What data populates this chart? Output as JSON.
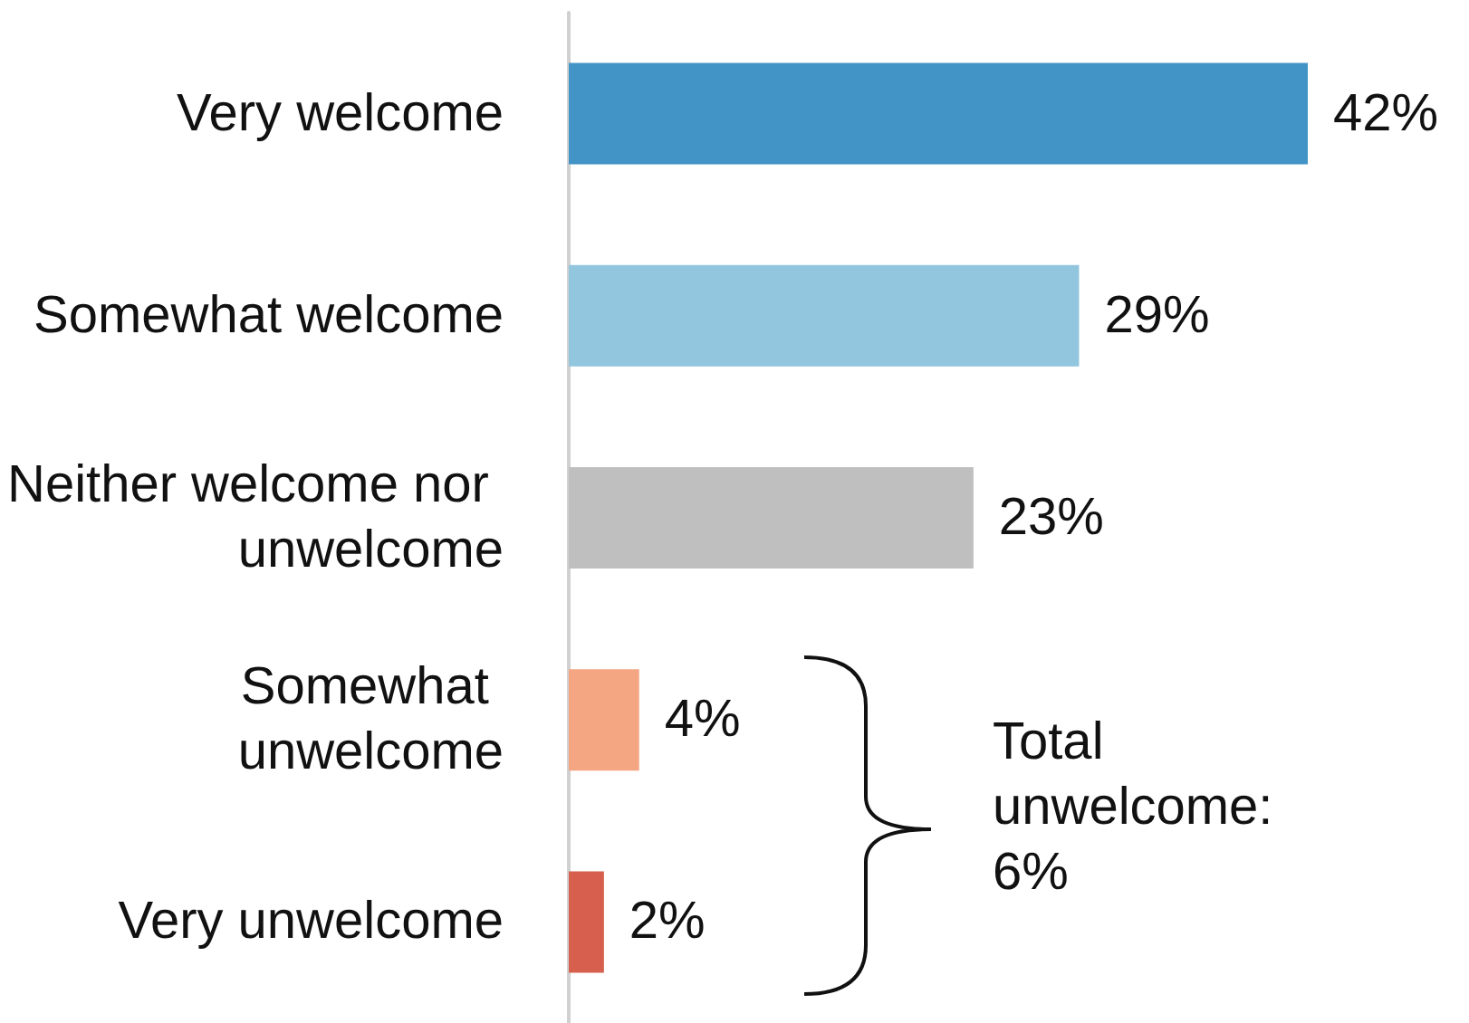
{
  "chart_data": {
    "type": "bar",
    "orientation": "horizontal",
    "categories": [
      "Very welcome",
      "Somewhat welcome",
      "Neither welcome nor unwelcome",
      "Somewhat unwelcome",
      "Very unwelcome"
    ],
    "values": [
      42,
      29,
      23,
      4,
      2
    ],
    "colors": [
      "#4394c6",
      "#92c5de",
      "#bfbfbf",
      "#f4a582",
      "#d6604d"
    ],
    "value_labels": [
      "42%",
      "29%",
      "23%",
      "4%",
      "2%"
    ],
    "annotations": [
      "Total unwelcome: 6%"
    ]
  }
}
